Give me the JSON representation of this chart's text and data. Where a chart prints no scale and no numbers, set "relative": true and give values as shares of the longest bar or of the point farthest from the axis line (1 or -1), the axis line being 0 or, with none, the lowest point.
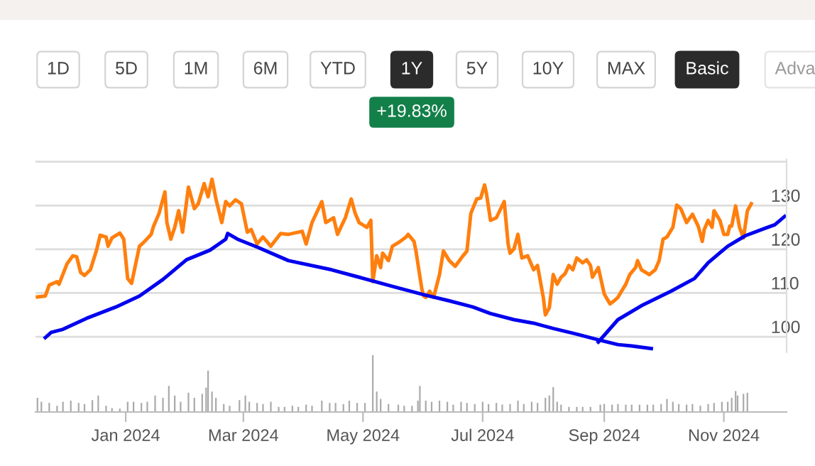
{
  "chart_data": [
    {
      "type": "other",
      "annotations": [
        "1D",
        "5D",
        "1M",
        "6M",
        "YTD",
        "1Y",
        "5Y",
        "10Y",
        "MAX",
        "Basic",
        "Adva",
        "+19.83%"
      ]
    },
    {
      "type": "line",
      "xlim": [
        "2023-11-16",
        "2024-12-03"
      ],
      "ylim": [
        96.5,
        140.5
      ],
      "yticks": [
        100,
        110,
        120,
        130,
        {
          "value": 140,
          "label": null
        }
      ],
      "grid": "y",
      "tick_labels": "y",
      "series": [
        {
          "color": "#ff7f0e",
          "x": [
            "2023-11-17",
            "2023-11-21",
            "2023-11-23",
            "2023-11-27",
            "2023-11-28",
            "2023-12-02",
            "2023-12-05",
            "2023-12-07",
            "2023-12-09",
            "2023-12-11",
            "2023-12-14",
            "2023-12-17",
            "2023-12-19",
            "2023-12-22",
            "2023-12-23",
            "2023-12-25",
            "2023-12-29",
            "2023-12-31",
            "2024-01-02",
            "2024-01-04",
            "2024-01-08",
            "2024-01-10",
            "2024-01-14",
            "2024-01-15",
            "2024-01-18",
            "2024-01-21",
            "2024-01-22",
            "2024-01-24",
            "2024-01-26",
            "2024-01-28",
            "2024-01-30",
            "2024-02-02",
            "2024-02-05",
            "2024-02-07",
            "2024-02-10",
            "2024-02-12",
            "2024-02-14",
            "2024-02-16",
            "2024-02-19",
            "2024-02-21",
            "2024-02-23",
            "2024-02-26",
            "2024-02-29",
            "2024-03-03",
            "2024-03-05",
            "2024-03-08",
            "2024-03-11",
            "2024-03-15",
            "2024-03-20",
            "2024-03-24",
            "2024-03-31",
            "2024-04-02",
            "2024-04-05",
            "2024-04-10",
            "2024-04-12",
            "2024-04-16",
            "2024-04-18",
            "2024-04-22",
            "2024-04-25",
            "2024-04-27",
            "2024-04-29",
            "2024-05-03",
            "2024-05-05",
            "2024-05-06",
            "2024-05-08",
            "2024-05-10",
            "2024-05-11",
            "2024-05-14",
            "2024-05-16",
            "2024-05-20",
            "2024-05-23",
            "2024-05-24",
            "2024-05-27",
            "2024-05-28",
            "2024-05-31",
            "2024-06-01",
            "2024-06-02",
            "2024-06-04",
            "2024-06-06",
            "2024-06-09",
            "2024-06-11",
            "2024-06-14",
            "2024-06-17",
            "2024-06-21",
            "2024-06-23",
            "2024-06-25",
            "2024-06-28",
            "2024-06-30",
            "2024-07-02",
            "2024-07-03",
            "2024-07-05",
            "2024-07-08",
            "2024-07-12",
            "2024-07-14",
            "2024-07-15",
            "2024-07-17",
            "2024-07-19",
            "2024-07-21",
            "2024-07-24",
            "2024-07-27",
            "2024-07-29",
            "2024-08-01",
            "2024-08-02",
            "2024-08-04",
            "2024-08-06",
            "2024-08-08",
            "2024-08-10",
            "2024-08-12",
            "2024-08-14",
            "2024-08-16",
            "2024-08-18",
            "2024-08-21",
            "2024-08-23",
            "2024-08-25",
            "2024-08-26",
            "2024-08-29",
            "2024-09-01",
            "2024-09-02",
            "2024-09-04",
            "2024-09-06",
            "2024-09-08",
            "2024-09-09",
            "2024-09-12",
            "2024-09-14",
            "2024-09-17",
            "2024-09-18",
            "2024-09-20",
            "2024-09-24",
            "2024-09-27",
            "2024-09-29",
            "2024-10-01",
            "2024-10-03",
            "2024-10-06",
            "2024-10-08",
            "2024-10-10",
            "2024-10-13",
            "2024-10-16",
            "2024-10-19",
            "2024-10-21",
            "2024-10-22",
            "2024-10-24",
            "2024-10-26",
            "2024-10-27",
            "2024-10-30",
            "2024-11-01",
            "2024-11-03",
            "2024-11-04",
            "2024-11-05",
            "2024-11-07",
            "2024-11-09",
            "2024-11-11",
            "2024-11-13",
            "2024-11-15"
          ],
          "values": [
            109.1,
            109.3,
            111.8,
            112.6,
            112.0,
            116.6,
            118.5,
            118.3,
            114.7,
            114.0,
            115.3,
            119.6,
            123.2,
            122.8,
            120.7,
            122.6,
            123.7,
            122.3,
            113.3,
            112.2,
            120.7,
            121.5,
            123.4,
            125.0,
            128.2,
            133.1,
            126.1,
            122.3,
            125.0,
            128.8,
            123.9,
            134.2,
            129.3,
            130.4,
            135.0,
            132.0,
            136.0,
            131.5,
            126.1,
            130.9,
            129.9,
            131.3,
            130.4,
            123.9,
            124.5,
            121.2,
            122.8,
            120.7,
            123.6,
            123.4,
            124.1,
            121.2,
            126.1,
            130.9,
            126.1,
            127.2,
            123.4,
            127.2,
            131.5,
            128.2,
            126.1,
            125.0,
            126.6,
            112.6,
            118.5,
            115.8,
            119.1,
            117.4,
            120.7,
            121.8,
            122.8,
            123.4,
            121.8,
            119.6,
            110.9,
            109.3,
            109.0,
            110.4,
            109.0,
            114.2,
            119.6,
            117.4,
            116.1,
            118.5,
            119.6,
            128.2,
            131.5,
            131.7,
            134.7,
            132.6,
            126.6,
            127.2,
            130.9,
            121.2,
            119.1,
            120.1,
            123.4,
            118.0,
            118.5,
            115.3,
            116.3,
            108.8,
            105.0,
            106.6,
            114.2,
            112.0,
            113.6,
            114.4,
            116.3,
            115.3,
            118.0,
            116.9,
            117.6,
            116.3,
            113.6,
            115.8,
            109.8,
            109.0,
            107.5,
            108.2,
            109.0,
            109.8,
            112.0,
            114.2,
            115.8,
            117.4,
            115.3,
            114.2,
            115.3,
            117.4,
            122.3,
            122.8,
            125.0,
            130.1,
            129.3,
            126.1,
            128.0,
            125.2,
            121.8,
            124.5,
            126.6,
            125.0,
            128.8,
            126.6,
            123.4,
            123.4,
            125.3,
            125.3,
            129.9,
            125.0,
            122.6,
            128.8,
            130.4
          ]
        },
        {
          "color": "#0000ee",
          "x": [
            "2023-11-21",
            "2023-11-24",
            "2023-11-30",
            "2023-12-12",
            "2023-12-27",
            "2024-01-08",
            "2024-01-20",
            "2024-02-01",
            "2024-02-13",
            "2024-02-21",
            "2024-02-22",
            "2024-02-27",
            "2024-03-08",
            "2024-03-24",
            "2024-04-15",
            "2024-04-29",
            "2024-05-16",
            "2024-06-01",
            "2024-06-14",
            "2024-06-26",
            "2024-07-05",
            "2024-07-17",
            "2024-07-27",
            "2024-08-06",
            "2024-08-18",
            "2024-08-29",
            "2024-09-08",
            "2024-09-15",
            "2024-09-25"
          ],
          "values": [
            99.8,
            101.0,
            101.7,
            104.2,
            106.8,
            109.3,
            113.1,
            117.6,
            119.8,
            122.3,
            123.6,
            122.3,
            120.5,
            117.4,
            115.3,
            113.6,
            111.5,
            109.6,
            108.2,
            106.8,
            105.3,
            103.9,
            103.1,
            101.9,
            100.6,
            99.3,
            98.2,
            97.9,
            97.3
          ]
        },
        {
          "color": "#0000ee",
          "x": [
            "2024-08-29",
            "2024-09-08",
            "2024-09-20",
            "2024-10-05",
            "2024-10-17",
            "2024-10-24",
            "2024-11-03",
            "2024-11-12",
            "2024-11-22",
            "2024-11-27",
            "2024-12-02"
          ],
          "values": [
            98.8,
            103.9,
            107.1,
            110.4,
            113.3,
            116.9,
            120.7,
            123.1,
            124.8,
            125.6,
            127.5
          ]
        }
      ]
    },
    {
      "type": "bar",
      "relative": true,
      "color": "#aaaaaa",
      "tick_labels": "x",
      "xlim": [
        "2023-11-16",
        "2024-12-03"
      ],
      "xticks": [
        {
          "value": "2024-01-01",
          "label": "Jan 2024"
        },
        {
          "value": "2024-03-01",
          "label": "Mar 2024"
        },
        {
          "value": "2024-05-01",
          "label": "May 2024"
        },
        {
          "value": "2024-07-01",
          "label": "Jul 2024"
        },
        {
          "value": "2024-09-01",
          "label": "Sep 2024"
        },
        {
          "value": "2024-11-01",
          "label": "Nov 2024"
        }
      ],
      "x": [
        "2023-11-17",
        "2023-11-19",
        "2023-11-23",
        "2023-11-27",
        "2023-11-30",
        "2023-12-04",
        "2023-12-08",
        "2023-12-11",
        "2023-12-15",
        "2023-12-18",
        "2023-12-22",
        "2023-12-25",
        "2023-12-29",
        "2024-01-02",
        "2024-01-05",
        "2024-01-09",
        "2024-01-12",
        "2024-01-16",
        "2024-01-20",
        "2024-01-23",
        "2024-01-26",
        "2024-01-29",
        "2024-02-02",
        "2024-02-05",
        "2024-02-09",
        "2024-02-11",
        "2024-02-12",
        "2024-02-14",
        "2024-02-16",
        "2024-02-20",
        "2024-02-23",
        "2024-02-28",
        "2024-03-02",
        "2024-03-04",
        "2024-03-08",
        "2024-03-11",
        "2024-03-15",
        "2024-03-19",
        "2024-03-22",
        "2024-03-26",
        "2024-03-29",
        "2024-04-02",
        "2024-04-05",
        "2024-04-10",
        "2024-04-14",
        "2024-04-17",
        "2024-04-21",
        "2024-04-24",
        "2024-04-28",
        "2024-05-02",
        "2024-05-06",
        "2024-05-08",
        "2024-05-10",
        "2024-05-14",
        "2024-05-19",
        "2024-05-22",
        "2024-05-26",
        "2024-05-29",
        "2024-05-30",
        "2024-06-02",
        "2024-06-05",
        "2024-06-09",
        "2024-06-13",
        "2024-06-16",
        "2024-06-20",
        "2024-06-23",
        "2024-06-27",
        "2024-07-01",
        "2024-07-04",
        "2024-07-08",
        "2024-07-11",
        "2024-07-15",
        "2024-07-19",
        "2024-07-22",
        "2024-07-26",
        "2024-07-29",
        "2024-08-02",
        "2024-08-04",
        "2024-08-06",
        "2024-08-08",
        "2024-08-10",
        "2024-08-14",
        "2024-08-18",
        "2024-08-21",
        "2024-08-25",
        "2024-08-30",
        "2024-09-01",
        "2024-09-05",
        "2024-09-08",
        "2024-09-12",
        "2024-09-15",
        "2024-09-19",
        "2024-09-23",
        "2024-09-26",
        "2024-09-30",
        "2024-10-03",
        "2024-10-06",
        "2024-10-09",
        "2024-10-13",
        "2024-10-16",
        "2024-10-20",
        "2024-10-24",
        "2024-10-27",
        "2024-10-31",
        "2024-11-03",
        "2024-11-05",
        "2024-11-07",
        "2024-11-08",
        "2024-11-11",
        "2024-11-13"
      ],
      "values": [
        0.25,
        0.18,
        0.16,
        0.11,
        0.18,
        0.2,
        0.16,
        0.14,
        0.21,
        0.29,
        0.11,
        0.07,
        0.06,
        0.18,
        0.18,
        0.16,
        0.18,
        0.29,
        0.25,
        0.46,
        0.29,
        0.18,
        0.34,
        0.25,
        0.32,
        0.43,
        0.73,
        0.36,
        0.25,
        0.14,
        0.11,
        0.21,
        0.29,
        0.18,
        0.16,
        0.14,
        0.18,
        0.09,
        0.09,
        0.11,
        0.09,
        0.13,
        0.11,
        0.2,
        0.16,
        0.16,
        0.14,
        0.2,
        0.16,
        0.16,
        1.0,
        0.36,
        0.23,
        0.14,
        0.13,
        0.11,
        0.11,
        0.2,
        0.46,
        0.2,
        0.18,
        0.2,
        0.18,
        0.13,
        0.18,
        0.16,
        0.14,
        0.18,
        0.14,
        0.16,
        0.13,
        0.14,
        0.2,
        0.14,
        0.18,
        0.16,
        0.25,
        0.29,
        0.44,
        0.18,
        0.13,
        0.09,
        0.09,
        0.09,
        0.09,
        0.13,
        0.14,
        0.13,
        0.14,
        0.13,
        0.13,
        0.13,
        0.13,
        0.13,
        0.14,
        0.23,
        0.18,
        0.14,
        0.13,
        0.14,
        0.11,
        0.14,
        0.16,
        0.18,
        0.18,
        0.25,
        0.37,
        0.29,
        0.32,
        0.34
      ]
    }
  ]
}
